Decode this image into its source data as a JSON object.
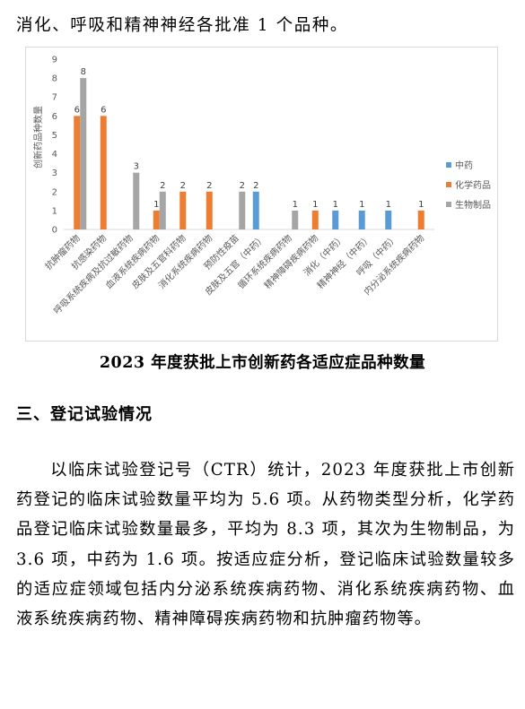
{
  "intro_line": "消化、呼吸和精神神经各批准 1 个品种。",
  "chart_data": {
    "type": "bar",
    "title": "",
    "ylabel": "创新药品种数量",
    "xlabel": "",
    "ylim": [
      0,
      9
    ],
    "yticks": [
      0,
      1,
      2,
      3,
      4,
      5,
      6,
      7,
      8,
      9
    ],
    "categories": [
      "抗肿瘤药物",
      "抗感染药物",
      "呼吸系统疾病及抗过敏药物",
      "血液系统疾病药物",
      "皮肤及五官科药物",
      "消化系统疾病药物",
      "预防性疫苗",
      "皮肤及五官（中药）",
      "循环系统疾病药物",
      "精神障碍疾病药物",
      "消化（中药）",
      "精神神经（中药）",
      "呼吸（中药）",
      "内分泌系统疾病药物"
    ],
    "series": [
      {
        "name": "中药",
        "color": "#5b9bd5",
        "values": [
          0,
          0,
          0,
          0,
          0,
          0,
          0,
          2,
          0,
          0,
          1,
          1,
          1,
          0
        ]
      },
      {
        "name": "化学药品",
        "color": "#ed7d31",
        "values": [
          6,
          6,
          0,
          1,
          2,
          2,
          0,
          0,
          0,
          1,
          0,
          0,
          0,
          1
        ]
      },
      {
        "name": "生物制品",
        "color": "#a5a5a5",
        "values": [
          8,
          0,
          3,
          2,
          0,
          0,
          2,
          0,
          1,
          0,
          0,
          0,
          0,
          0
        ]
      }
    ],
    "legend_position": "right",
    "grid": false
  },
  "caption": "2023 年度获批上市创新药各适应症品种数量",
  "section_title": "三、登记试验情况",
  "paragraph": "以临床试验登记号（CTR）统计，2023 年度获批上市创新药登记的临床试验数量平均为 5.6 项。从药物类型分析，化学药品登记临床试验数量最多，平均为 8.3 项，其次为生物制品，为 3.6 项，中药为 1.6 项。按适应症分析，登记临床试验数量较多的适应症领域包括内分泌系统疾病药物、消化系统疾病药物、血液系统疾病药物、精神障碍疾病药物和抗肿瘤药物等。"
}
